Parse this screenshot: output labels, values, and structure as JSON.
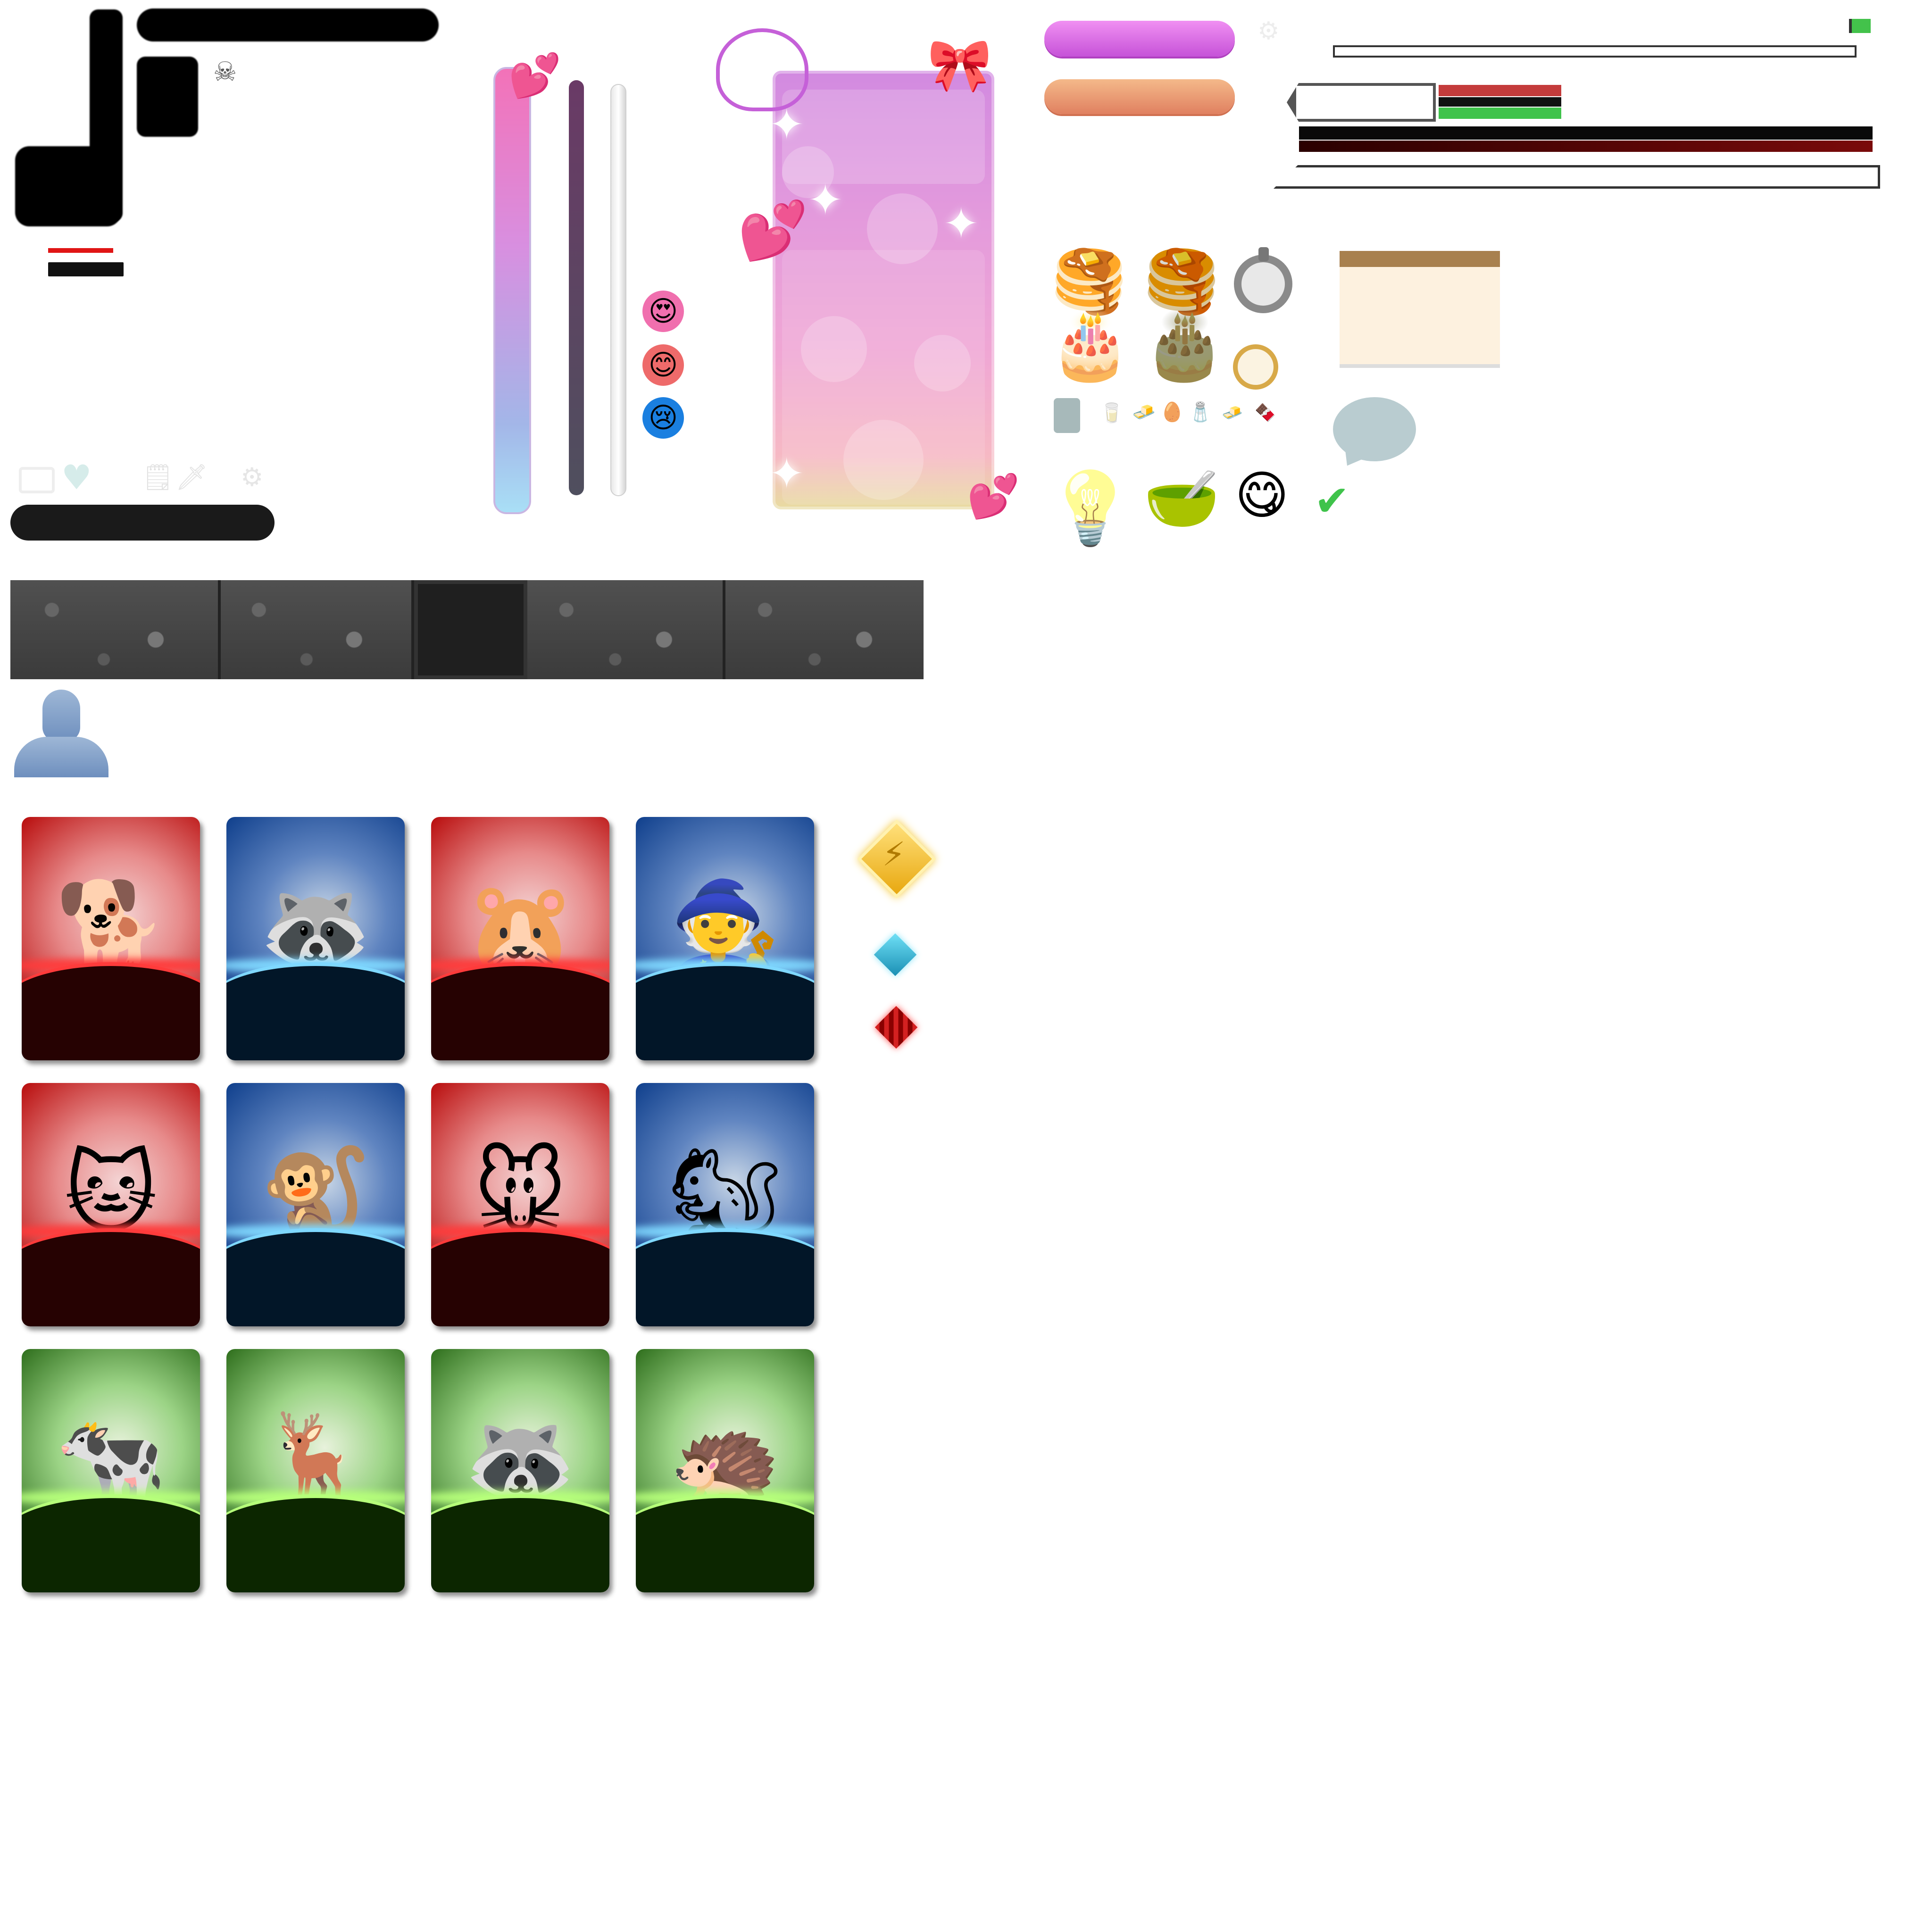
{
  "canvas": {
    "background": "#ffffff"
  },
  "colors": {
    "pink_button": "#d76ee2",
    "orange_button": "#e8966a",
    "health_red": "#c43b3b",
    "health_green": "#3fc34b",
    "dark_red": "#7a0a0a",
    "panel_pink": "#e49bdc",
    "card_red_bottom": "#260202",
    "card_blue_bottom": "#021628",
    "card_green_bottom": "#0c2600",
    "lightning_gem": "#f3c53b",
    "blue_gem": "#1aa6c9",
    "red_gem": "#d42020"
  },
  "icons": {
    "skull": "skull-icon",
    "heart": "heart-icon",
    "sword": "sword-icon",
    "gear": "gear-icon",
    "note": "note-icon",
    "flag": "flag-icon",
    "check": "check-icon",
    "lightbulb": "lightbulb-icon",
    "speech_bubble": "speech-bubble-icon",
    "mixing_bowl": "mixing-bowl-icon",
    "emoji_tongue": "emoji-tongue-icon",
    "avatar_silhouette": "avatar-silhouette-icon",
    "pancakes": "pancakes-icon",
    "cake": "cake-icon",
    "frying_pan": "frying-pan-icon"
  },
  "emoji_faces": [
    "😍",
    "😊",
    "😢"
  ],
  "food_glyphs": {
    "pancake_plain": "🥞",
    "pancake_syrup": "🥞",
    "cake_pink": "🎂",
    "cake_chocolate": "🎂",
    "lightbulb": "💡",
    "bowl": "🥣",
    "tongue_face": "😋",
    "check": "✔",
    "skull": "☠",
    "heart": "♥",
    "sword": "🗡",
    "gear": "⚙",
    "note": "🗒",
    "lightning": "⚡",
    "sparkle": "✦",
    "love_heart": "💕",
    "bow": "🎀",
    "person": "👤",
    "small_items": [
      "🥛",
      "🧈",
      "🥚",
      "🧂",
      "🧈",
      "🍫"
    ]
  },
  "cards": [
    {
      "subject": "dog",
      "glyph": "🐕",
      "theme": "red"
    },
    {
      "subject": "raccoon knight",
      "glyph": "🦝",
      "theme": "blue"
    },
    {
      "subject": "hamster with sword",
      "glyph": "🐹",
      "theme": "red"
    },
    {
      "subject": "gnome wizard",
      "glyph": "🧙",
      "theme": "blue"
    },
    {
      "subject": "kitten",
      "glyph": "🐱",
      "theme": "red"
    },
    {
      "subject": "baby orangutan mage",
      "glyph": "🐒",
      "theme": "blue"
    },
    {
      "subject": "opossum with toothbrush",
      "glyph": "🐭",
      "theme": "red"
    },
    {
      "subject": "squirrel with umbrella",
      "glyph": "🐿",
      "theme": "blue"
    },
    {
      "subject": "cow",
      "glyph": "🐄",
      "theme": "green"
    },
    {
      "subject": "deer",
      "glyph": "🦌",
      "theme": "green"
    },
    {
      "subject": "raccoon with colander",
      "glyph": "🦝",
      "theme": "green"
    },
    {
      "subject": "hedgehog",
      "glyph": "🦔",
      "theme": "green"
    }
  ]
}
